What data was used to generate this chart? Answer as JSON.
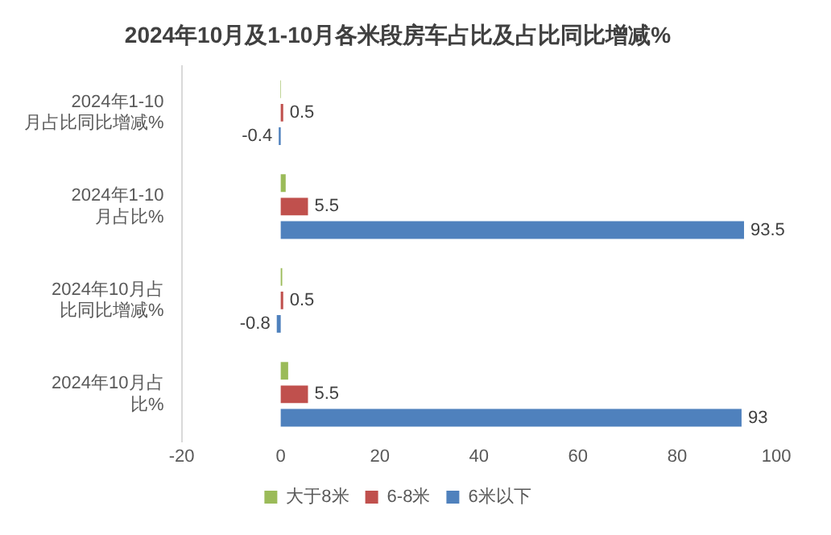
{
  "chart_data": {
    "type": "bar",
    "orientation": "horizontal",
    "title": "2024年10月及1-10月各米段房车占比及占比同比增减%",
    "categories": [
      "2024年1-10月占比同比增减%",
      "2024年1-10月占比%",
      "2024年10月占比同比增减%",
      "2024年10月占比%"
    ],
    "series": [
      {
        "name": "大于8米",
        "color": "#9bbb59",
        "values": [
          -0.1,
          1,
          0.3,
          1.5
        ]
      },
      {
        "name": "6-8米",
        "color": "#c0504d",
        "values": [
          0.5,
          5.5,
          0.5,
          5.5
        ],
        "value_labels": [
          "0.5",
          "5.5",
          "0.5",
          "5.5"
        ]
      },
      {
        "name": "6米以下",
        "color": "#4f81bd",
        "values": [
          -0.4,
          93.5,
          -0.8,
          93
        ],
        "value_labels": [
          "-0.4",
          "93.5",
          "-0.8",
          "93"
        ]
      }
    ],
    "xlim": [
      -20,
      100
    ],
    "xticks": [
      -20,
      0,
      20,
      40,
      60,
      80,
      100
    ],
    "grid": false,
    "legend": "bottom"
  }
}
